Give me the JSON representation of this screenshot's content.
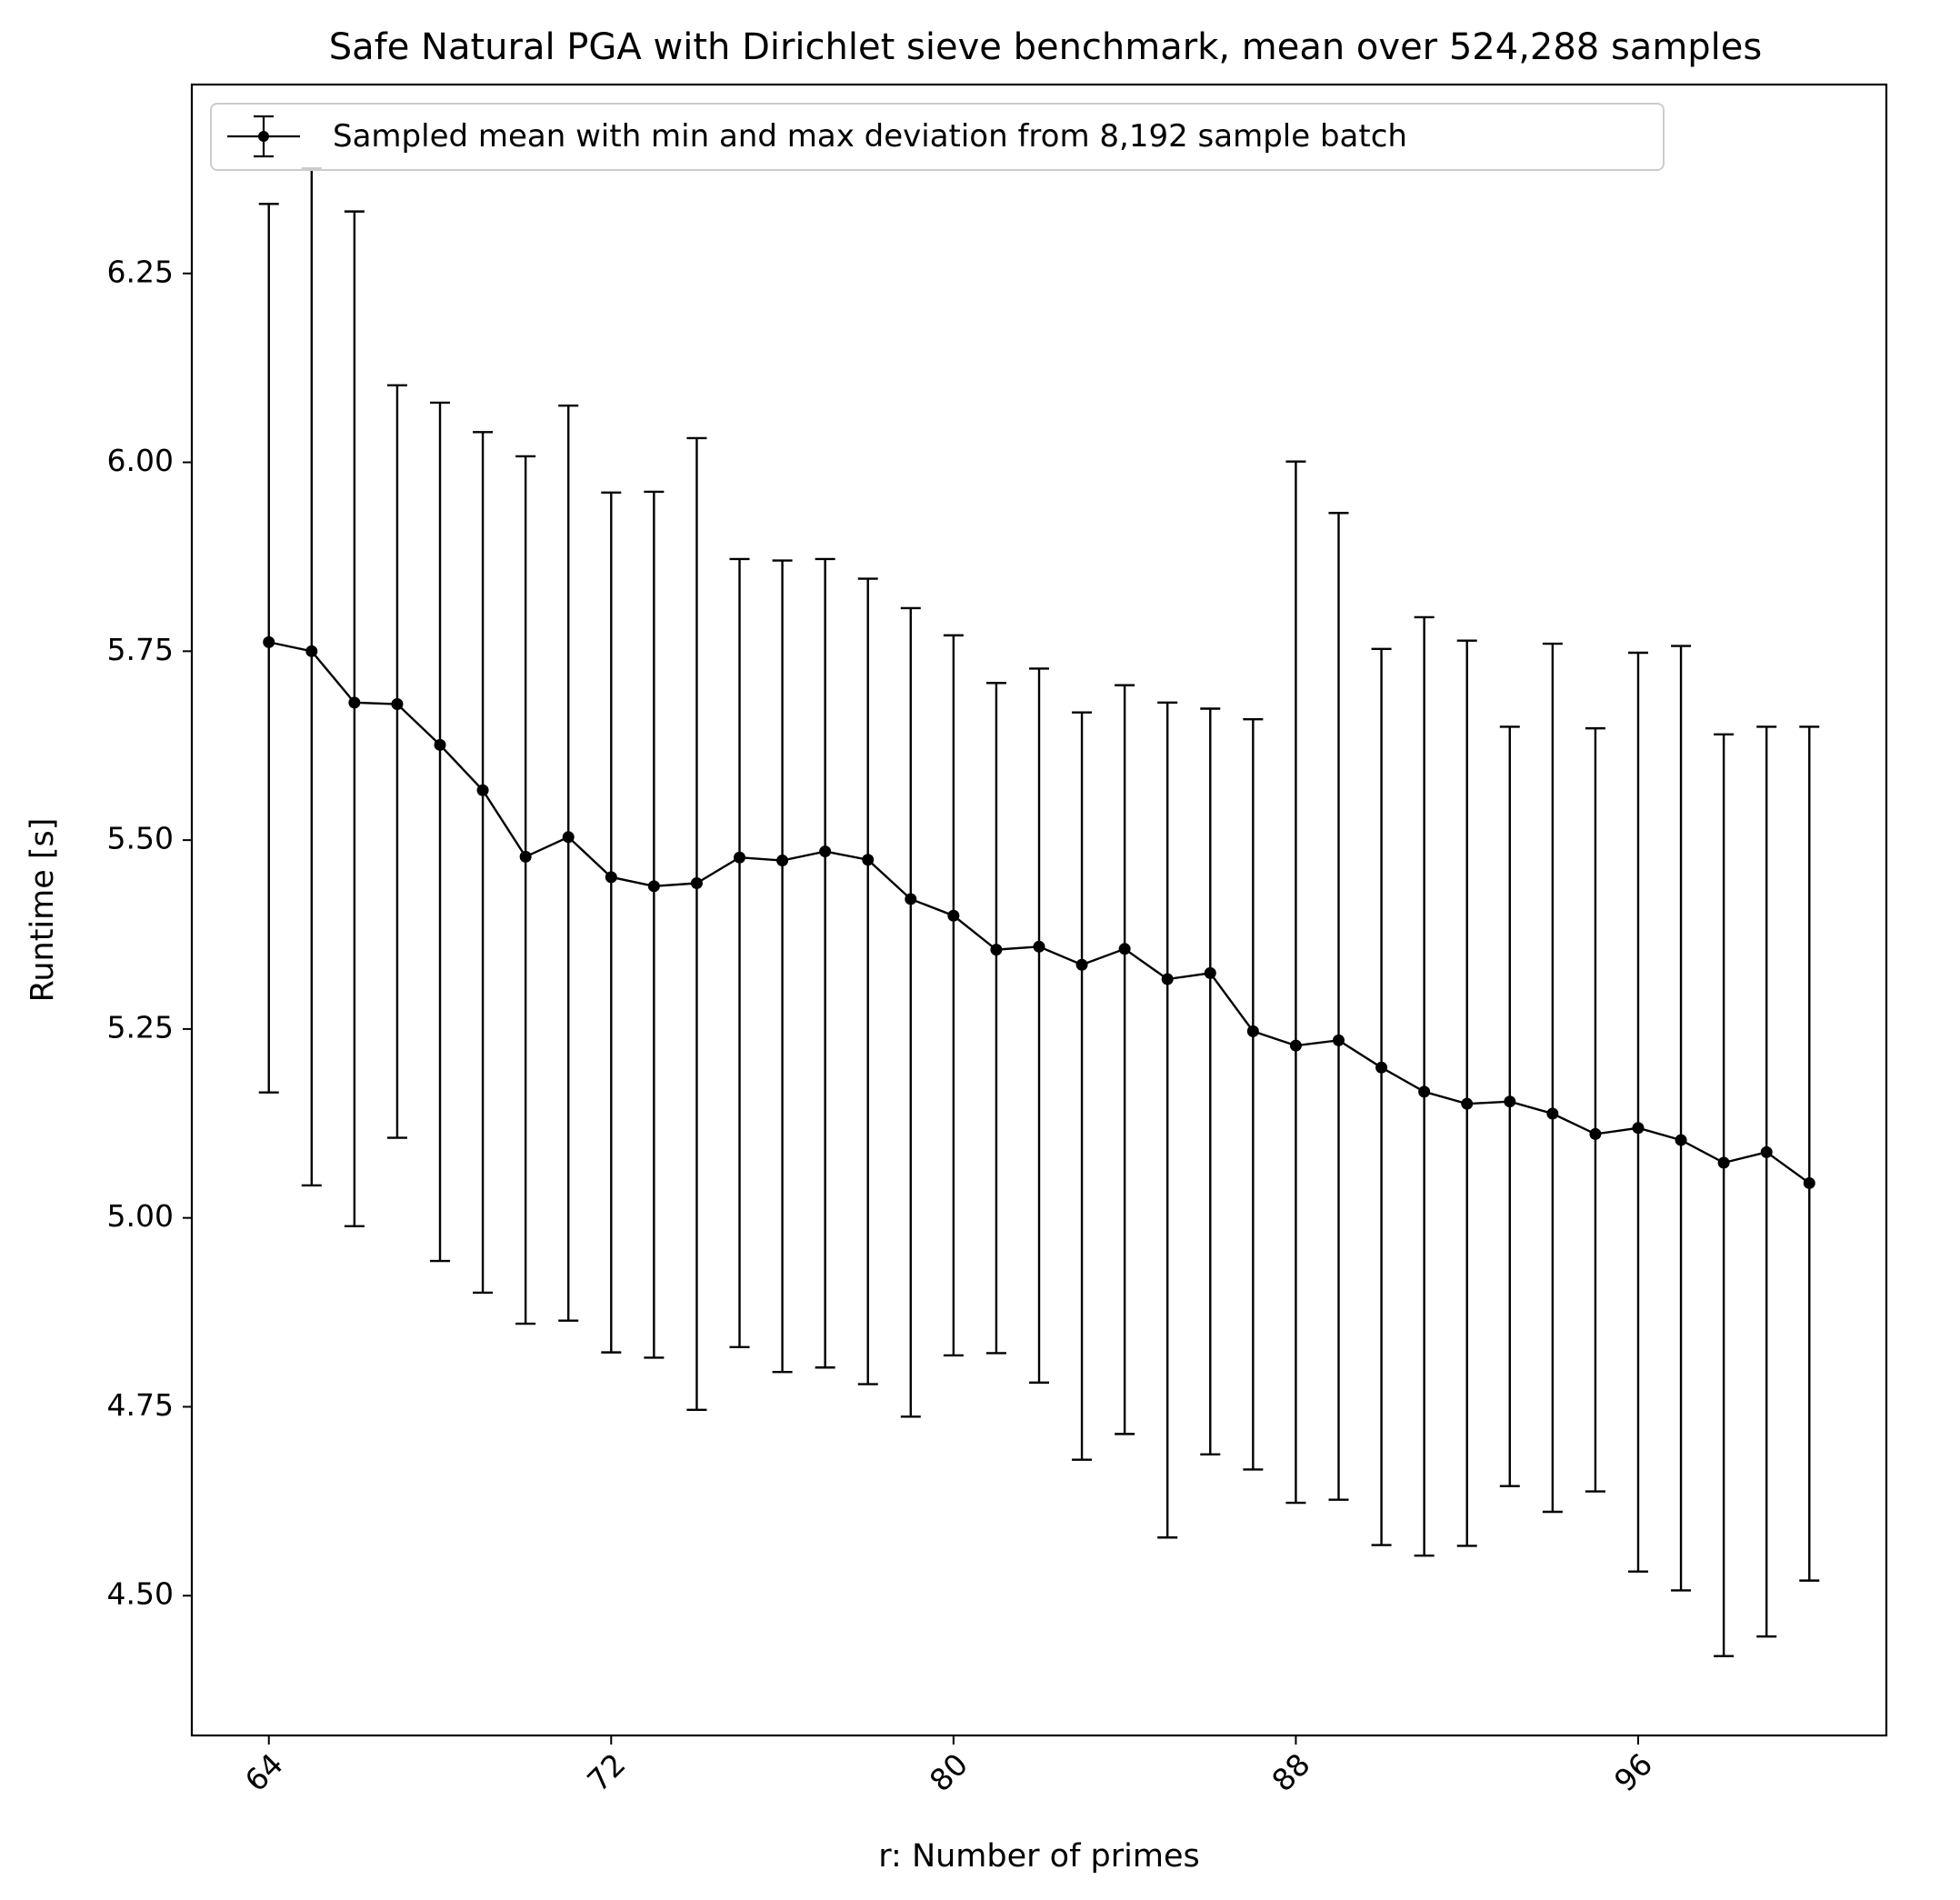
{
  "chart_data": {
    "type": "line",
    "title": "Safe Natural PGA with Dirichlet sieve benchmark, mean over 524,288 samples",
    "xlabel": "r: Number of primes",
    "ylabel": "Runtime [s]",
    "xlim": [
      62.2,
      101.8
    ],
    "ylim": [
      4.315,
      6.5
    ],
    "xticks": [
      64,
      72,
      80,
      88,
      96
    ],
    "xtick_labels": [
      "64",
      "72",
      "80",
      "88",
      "96"
    ],
    "yticks": [
      4.5,
      4.75,
      5.0,
      5.25,
      5.5,
      5.75,
      6.0,
      6.25
    ],
    "ytick_labels": [
      "4.50",
      "4.75",
      "5.00",
      "5.25",
      "5.50",
      "5.75",
      "6.00",
      "6.25"
    ],
    "grid": false,
    "legend_position": "top-left",
    "series": [
      {
        "name": "Sampled mean with min and max deviation from 8,192 sample batch",
        "color": "#000000",
        "marker": "dot",
        "error_bars": "asymmetric min/max",
        "x": [
          64,
          65,
          66,
          67,
          68,
          69,
          70,
          71,
          72,
          73,
          74,
          75,
          76,
          77,
          78,
          79,
          80,
          81,
          82,
          83,
          84,
          85,
          86,
          87,
          88,
          89,
          90,
          91,
          92,
          93,
          94,
          95,
          96,
          97,
          98,
          99,
          100
        ],
        "y": [
          5.762,
          5.75,
          5.682,
          5.68,
          5.626,
          5.566,
          5.478,
          5.504,
          5.451,
          5.439,
          5.443,
          5.477,
          5.473,
          5.485,
          5.474,
          5.422,
          5.4,
          5.355,
          5.359,
          5.335,
          5.356,
          5.316,
          5.324,
          5.247,
          5.228,
          5.235,
          5.199,
          5.167,
          5.151,
          5.154,
          5.138,
          5.111,
          5.119,
          5.103,
          5.073,
          5.087,
          5.046
        ],
        "y_min": [
          5.166,
          5.043,
          4.989,
          5.106,
          4.943,
          4.901,
          4.86,
          4.864,
          4.822,
          4.815,
          4.746,
          4.829,
          4.796,
          4.802,
          4.78,
          4.737,
          4.818,
          4.821,
          4.782,
          4.68,
          4.714,
          4.577,
          4.687,
          4.667,
          4.623,
          4.627,
          4.567,
          4.553,
          4.566,
          4.645,
          4.611,
          4.638,
          4.532,
          4.507,
          4.42,
          4.446,
          4.52
        ],
        "y_max": [
          6.342,
          6.389,
          6.332,
          6.102,
          6.079,
          6.04,
          6.008,
          6.075,
          5.96,
          5.961,
          6.032,
          5.872,
          5.87,
          5.872,
          5.846,
          5.807,
          5.771,
          5.708,
          5.727,
          5.669,
          5.705,
          5.682,
          5.674,
          5.66,
          6.001,
          5.933,
          5.753,
          5.795,
          5.764,
          5.65,
          5.76,
          5.648,
          5.748,
          5.757,
          5.64,
          5.65,
          5.65
        ]
      }
    ]
  }
}
